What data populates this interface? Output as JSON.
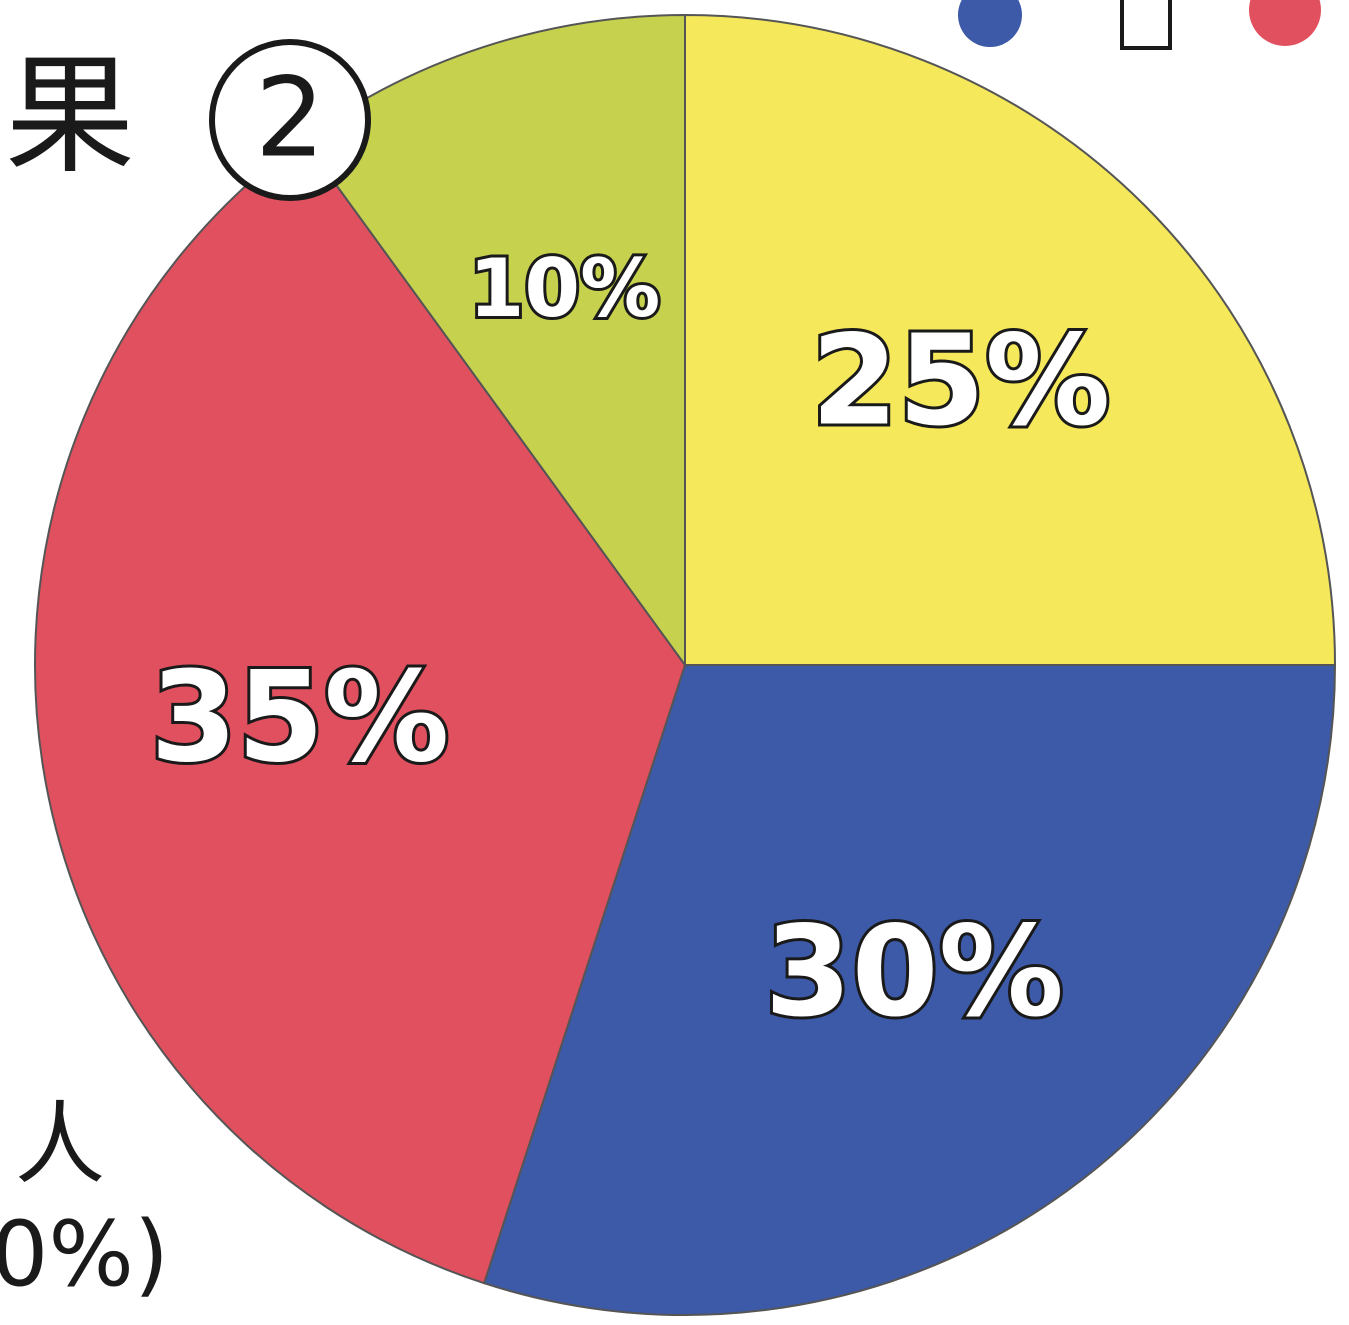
{
  "chart_data": {
    "type": "pie",
    "annotations": [
      "果",
      "2",
      "人",
      "0%)"
    ],
    "categories": [
      null,
      null,
      null,
      null
    ],
    "values": [
      25,
      30,
      35,
      10
    ],
    "value_labels": [
      "25%",
      "30%",
      "35%",
      "10%"
    ],
    "colors": [
      "#f5e85a",
      "#3d5aa8",
      "#e0505e",
      "#c6d14e"
    ]
  }
}
